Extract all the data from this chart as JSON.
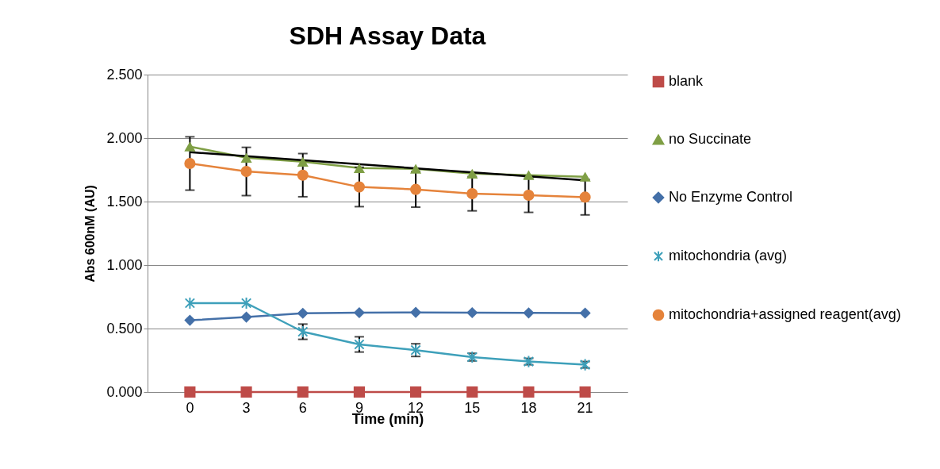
{
  "chart_data": {
    "type": "line",
    "title": "SDH Assay Data",
    "xlabel": "Time (min)",
    "ylabel": "Abs 600nM (AU)",
    "categories": [
      "0",
      "3",
      "6",
      "9",
      "12",
      "15",
      "18",
      "21"
    ],
    "series": [
      {
        "name": "blank",
        "color": "#be4b48",
        "marker": "square",
        "values": [
          0,
          0,
          0,
          0,
          0,
          0,
          0,
          0
        ]
      },
      {
        "name": "no Succinate",
        "color": "#7f9f45",
        "marker": "triangle",
        "values": [
          1.933,
          1.845,
          1.814,
          1.764,
          1.758,
          1.72,
          1.708,
          1.696
        ]
      },
      {
        "name": "No Enzyme Control",
        "color": "#4470a8",
        "marker": "diamond",
        "values": [
          0.565,
          0.59,
          0.62,
          0.625,
          0.627,
          0.625,
          0.623,
          0.622
        ]
      },
      {
        "name": "mitochondria (avg)",
        "color": "#3ea0ba",
        "marker": "cross",
        "values": [
          0.7,
          0.7,
          0.475,
          0.375,
          0.33,
          0.275,
          0.24,
          0.215
        ],
        "errors": [
          null,
          null,
          0.06,
          0.06,
          0.05,
          0.03,
          0.025,
          0.025
        ]
      },
      {
        "name": "mitochondria+assigned reagent(avg)",
        "color": "#e5833b",
        "marker": "circle",
        "values": [
          1.8,
          1.737,
          1.708,
          1.615,
          1.596,
          1.562,
          1.55,
          1.535
        ],
        "errors": [
          0.21,
          0.19,
          0.17,
          0.155,
          0.14,
          0.135,
          0.135,
          0.14
        ]
      },
      {
        "type": "line",
        "color": "#000000",
        "marker": "none",
        "x": [
          "0",
          "21"
        ],
        "values": [
          1.889,
          1.667
        ]
      }
    ],
    "ylim": [
      0,
      2.5
    ],
    "yticks": [
      {
        "value": 0,
        "label": "0.000"
      },
      {
        "value": 0.5,
        "label": "0.500"
      },
      {
        "value": 1,
        "label": "1.000"
      },
      {
        "value": 1.5,
        "label": "1.500"
      },
      {
        "value": 2,
        "label": "2.000"
      },
      {
        "value": 2.5,
        "label": "2.500"
      }
    ],
    "grid": "y",
    "legend": "right"
  }
}
